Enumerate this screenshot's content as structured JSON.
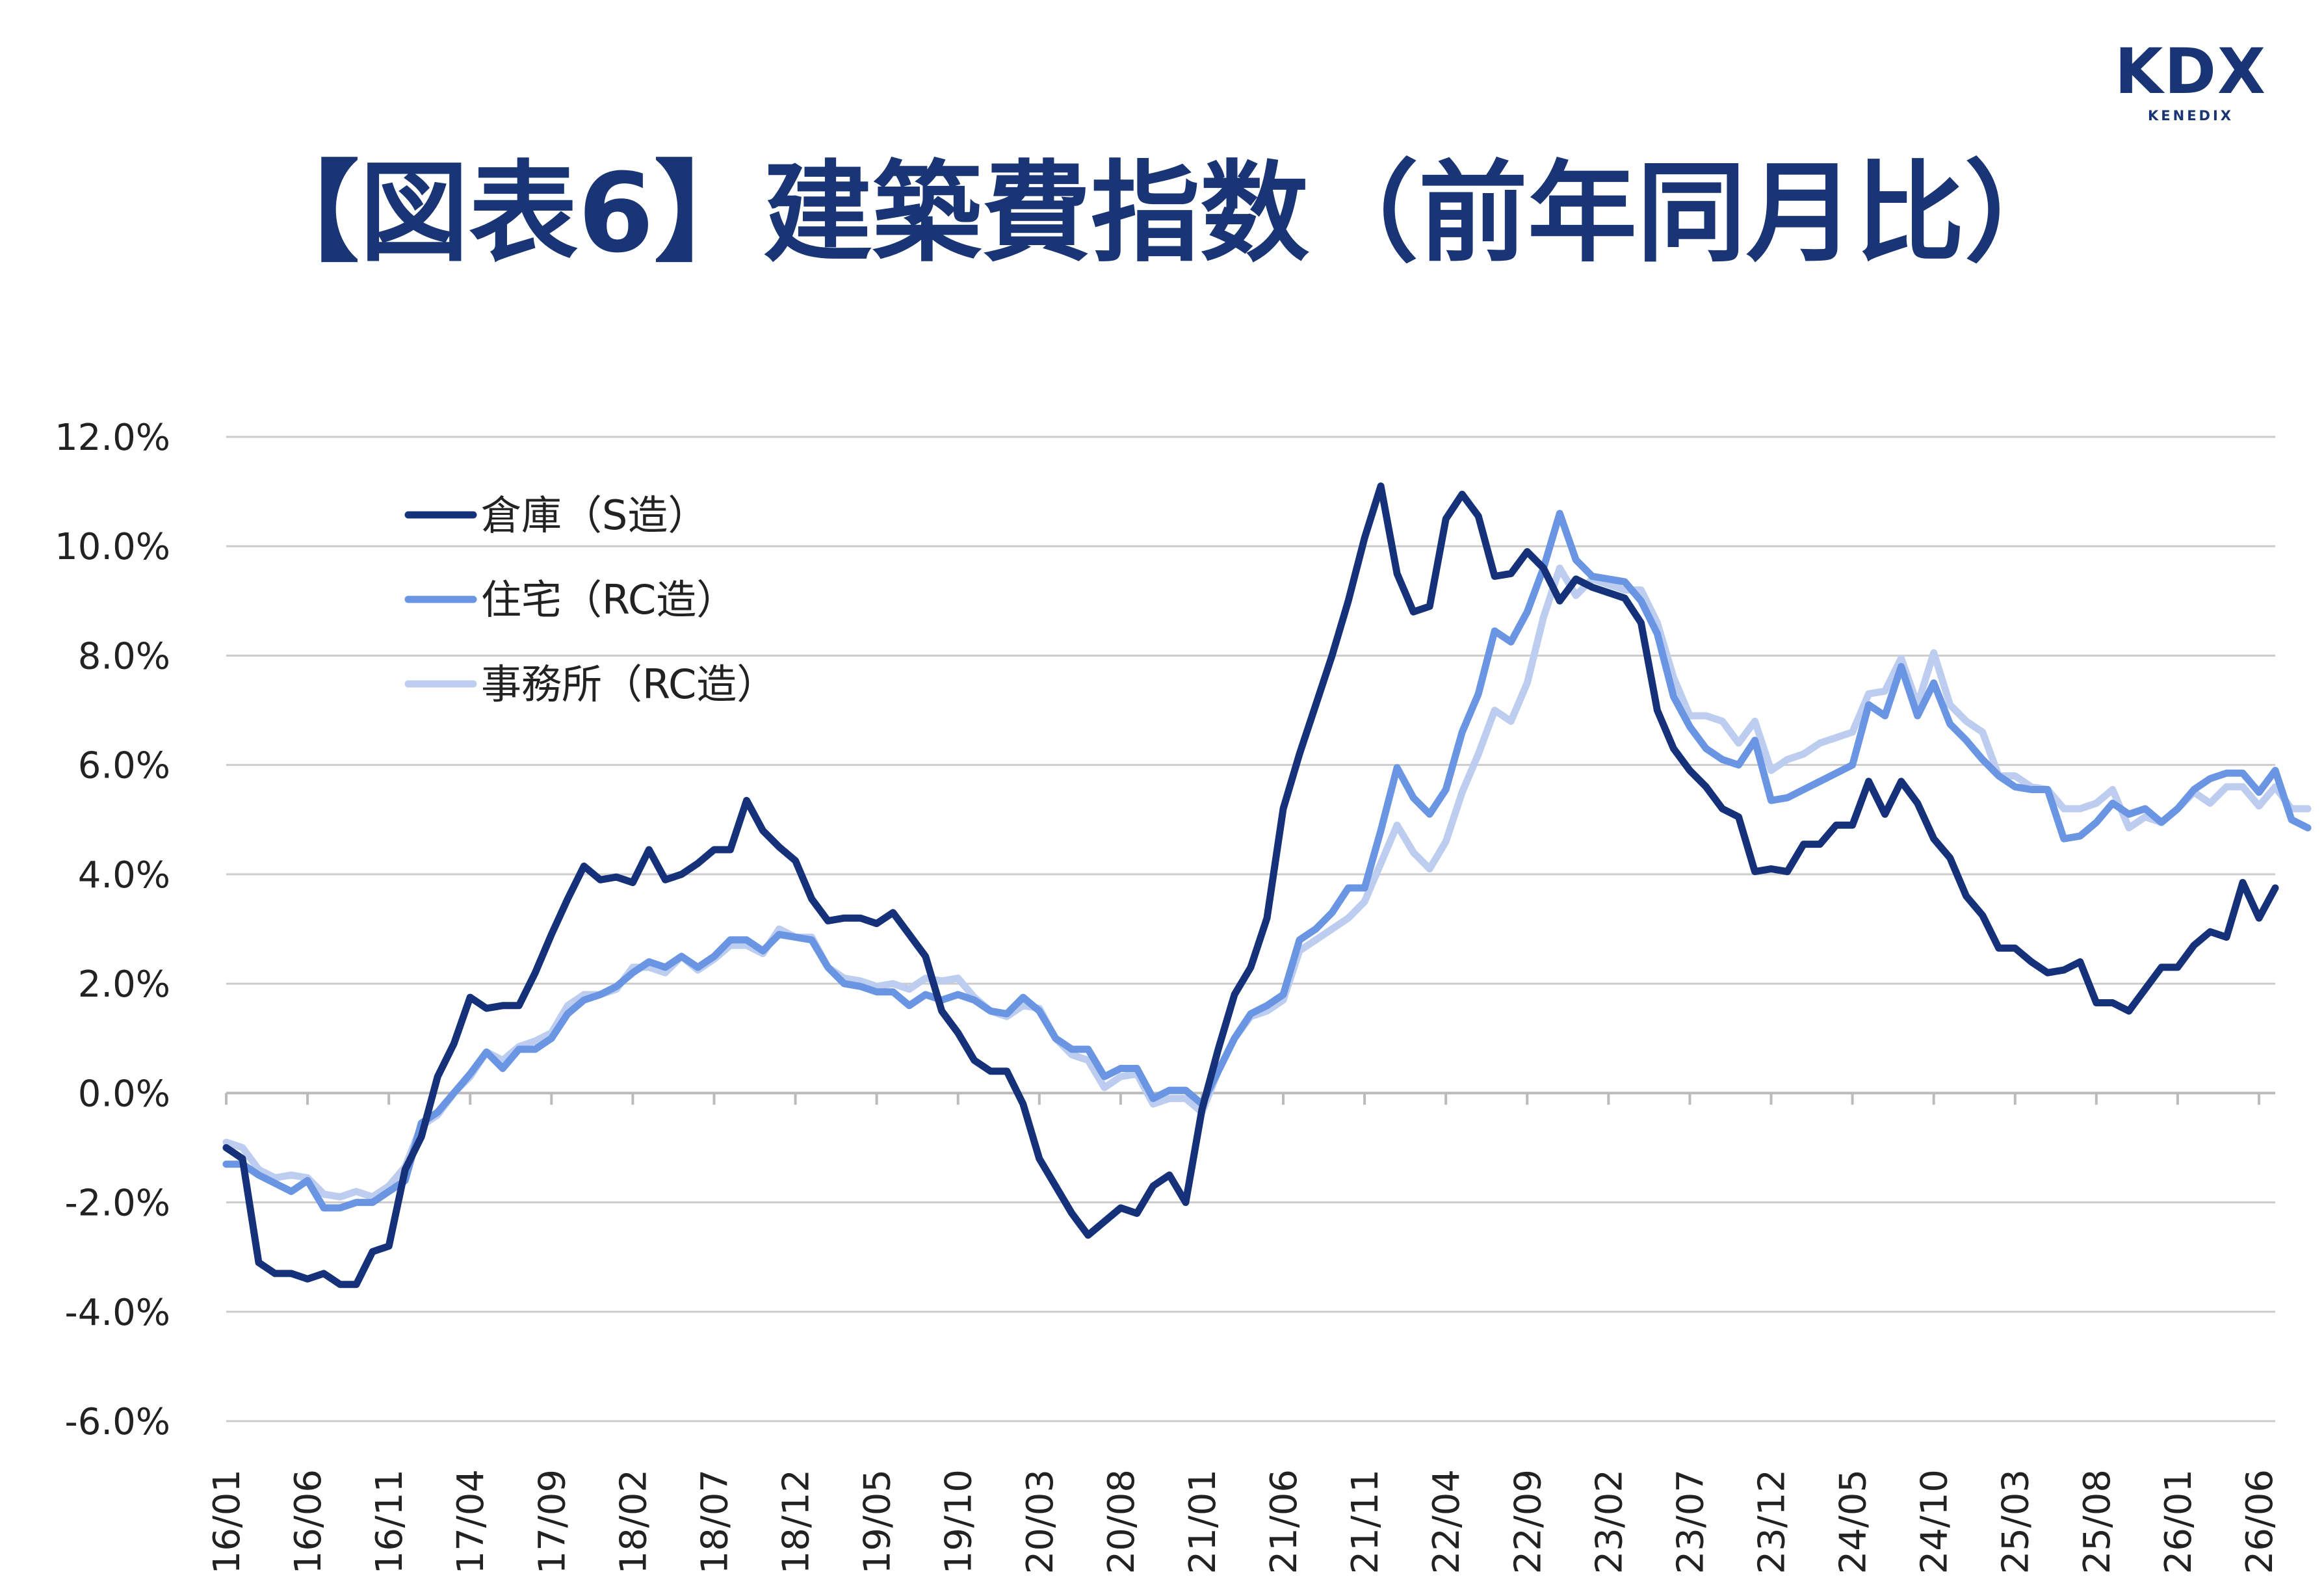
{
  "logo": {
    "main": "KDX",
    "sub": "KENEDIX"
  },
  "title": "【図表6】建築費指数（前年同月比）",
  "colors": {
    "series1": "#14317a",
    "series2": "#6a95e2",
    "series3": "#bccdf0",
    "grid": "#cccccc",
    "title": "#1a3575"
  },
  "chart_data": {
    "type": "line",
    "title": "【図表6】建築費指数（前年同月比）",
    "xlabel": "",
    "ylabel": "",
    "ylim": [
      -6.0,
      12.0
    ],
    "yticks": [
      "12.0%",
      "10.0%",
      "8.0%",
      "6.0%",
      "4.0%",
      "2.0%",
      "0.0%",
      "-2.0%",
      "-4.0%",
      "-6.0%"
    ],
    "ytick_values": [
      12,
      10,
      8,
      6,
      4,
      2,
      0,
      -2,
      -4,
      -6
    ],
    "xticks": [
      "16/01",
      "16/06",
      "16/11",
      "17/04",
      "17/09",
      "18/02",
      "18/07",
      "18/12",
      "19/05",
      "19/10",
      "20/03",
      "20/08",
      "21/01",
      "21/06",
      "21/11",
      "22/04",
      "22/09",
      "23/02",
      "23/07",
      "23/12",
      "24/05",
      "24/10",
      "25/03",
      "25/08",
      "26/01",
      "26/06"
    ],
    "x_start": "16/01",
    "x_end": "26/06",
    "grid": true,
    "legend_position": "top-left",
    "series": [
      {
        "name": "倉庫（S造）",
        "values": [
          -1.0,
          -1.2,
          -3.1,
          -3.3,
          -3.3,
          -3.4,
          -3.3,
          -3.5,
          -3.5,
          -2.9,
          -2.8,
          -1.4,
          -0.8,
          0.3,
          0.9,
          1.75,
          1.55,
          1.6,
          1.6,
          2.2,
          2.9,
          3.55,
          4.15,
          3.9,
          3.95,
          3.85,
          4.45,
          3.9,
          4.0,
          4.2,
          4.45,
          4.45,
          5.35,
          4.8,
          4.5,
          4.25,
          3.55,
          3.15,
          3.2,
          3.2,
          3.1,
          3.3,
          2.9,
          2.5,
          1.5,
          1.1,
          0.6,
          0.4,
          0.4,
          -0.2,
          -1.2,
          -1.7,
          -2.2,
          -2.6,
          -2.35,
          -2.1,
          -2.2,
          -1.7,
          -1.5,
          -2.0,
          -0.3,
          0.8,
          1.8,
          2.3,
          3.2,
          5.2,
          6.2,
          7.1,
          8.0,
          9.0,
          10.15,
          11.1,
          9.5,
          8.8,
          8.9,
          10.5,
          10.95,
          10.55,
          9.45,
          9.5,
          9.9,
          9.6,
          9.0,
          9.4,
          9.25,
          9.15,
          9.05,
          8.6,
          7.0,
          6.3,
          5.9,
          5.6,
          5.2,
          5.05,
          4.05,
          4.1,
          4.05,
          4.55,
          4.55,
          4.9,
          4.9,
          5.7,
          5.1,
          5.7,
          5.3,
          4.65,
          4.3,
          3.6,
          3.25,
          2.65,
          2.65,
          2.4,
          2.2,
          2.25,
          2.4,
          1.65,
          1.65,
          1.5,
          1.9,
          2.3,
          2.3,
          2.7,
          2.95,
          2.85,
          3.85,
          3.2,
          3.75
        ]
      },
      {
        "name": "住宅（RC造）",
        "values": [
          -1.3,
          -1.3,
          -1.5,
          -1.65,
          -1.8,
          -1.6,
          -2.1,
          -2.1,
          -2.0,
          -2.0,
          -1.8,
          -1.6,
          -0.55,
          -0.35,
          0.0,
          0.35,
          0.75,
          0.45,
          0.8,
          0.8,
          1.0,
          1.45,
          1.7,
          1.8,
          1.95,
          2.2,
          2.4,
          2.3,
          2.5,
          2.3,
          2.5,
          2.8,
          2.8,
          2.6,
          2.9,
          2.85,
          2.8,
          2.3,
          2.0,
          1.95,
          1.85,
          1.85,
          1.6,
          1.8,
          1.7,
          1.8,
          1.7,
          1.5,
          1.45,
          1.75,
          1.5,
          1.0,
          0.8,
          0.8,
          0.3,
          0.45,
          0.45,
          -0.1,
          0.05,
          0.05,
          -0.2,
          0.4,
          1.0,
          1.45,
          1.6,
          1.8,
          2.8,
          3.0,
          3.3,
          3.75,
          3.75,
          4.8,
          5.95,
          5.4,
          5.1,
          5.55,
          6.6,
          7.3,
          8.45,
          8.25,
          8.8,
          9.6,
          10.6,
          9.75,
          9.45,
          9.4,
          9.35,
          9.0,
          8.4,
          7.25,
          6.7,
          6.3,
          6.1,
          6.0,
          6.45,
          5.35,
          5.4,
          5.55,
          5.7,
          5.85,
          6.0,
          7.1,
          6.9,
          7.8,
          6.9,
          7.5,
          6.75,
          6.45,
          6.1,
          5.8,
          5.6,
          5.55,
          5.55,
          4.65,
          4.7,
          4.95,
          5.3,
          5.1,
          5.2,
          4.95,
          5.2,
          5.55,
          5.75,
          5.85,
          5.85,
          5.5,
          5.9,
          5.0,
          4.85
        ]
      },
      {
        "name": "事務所（RC造）",
        "values": [
          -0.9,
          -1.0,
          -1.4,
          -1.55,
          -1.5,
          -1.55,
          -1.85,
          -1.9,
          -1.8,
          -1.9,
          -1.7,
          -1.35,
          -0.6,
          -0.4,
          0.0,
          0.3,
          0.75,
          0.6,
          0.85,
          0.95,
          1.1,
          1.6,
          1.8,
          1.8,
          1.9,
          2.3,
          2.3,
          2.2,
          2.5,
          2.25,
          2.45,
          2.7,
          2.7,
          2.55,
          3.0,
          2.85,
          2.85,
          2.3,
          2.1,
          2.05,
          1.95,
          2.0,
          1.9,
          2.1,
          2.05,
          2.1,
          1.75,
          1.5,
          1.4,
          1.6,
          1.55,
          1.0,
          0.7,
          0.6,
          0.1,
          0.3,
          0.35,
          -0.2,
          -0.1,
          -0.1,
          -0.35,
          0.4,
          1.0,
          1.4,
          1.5,
          1.7,
          2.6,
          2.8,
          3.0,
          3.2,
          3.5,
          4.2,
          4.9,
          4.4,
          4.1,
          4.6,
          5.5,
          6.2,
          7.0,
          6.8,
          7.5,
          8.7,
          9.6,
          9.1,
          9.4,
          9.3,
          9.2,
          9.2,
          8.6,
          7.6,
          6.9,
          6.9,
          6.8,
          6.4,
          6.8,
          5.9,
          6.1,
          6.2,
          6.4,
          6.5,
          6.6,
          7.3,
          7.35,
          7.95,
          7.1,
          8.05,
          7.1,
          6.8,
          6.6,
          5.8,
          5.8,
          5.6,
          5.55,
          5.2,
          5.2,
          5.3,
          5.55,
          4.85,
          5.05,
          4.95,
          5.2,
          5.5,
          5.3,
          5.6,
          5.6,
          5.25,
          5.6,
          5.2,
          5.2
        ]
      }
    ]
  }
}
